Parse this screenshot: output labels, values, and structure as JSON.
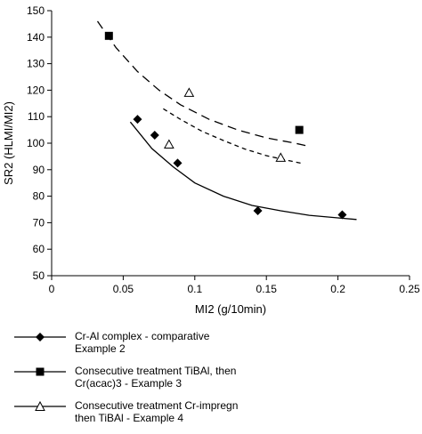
{
  "chart_data": {
    "type": "scatter",
    "title": "",
    "xlabel": "MI2 (g/10min)",
    "ylabel": "SR2 (HLMI/MI2)",
    "xlim": [
      0,
      0.25
    ],
    "ylim": [
      50,
      150
    ],
    "x_ticks": [
      "0",
      "0.05",
      "0.1",
      "0.15",
      "0.2",
      "0.25"
    ],
    "y_ticks": [
      "50",
      "60",
      "70",
      "80",
      "90",
      "100",
      "110",
      "120",
      "130",
      "140",
      "150"
    ],
    "grid": false,
    "legend_position": "bottom",
    "series": [
      {
        "name": "Cr-Al complex - comparative Example 2",
        "label_lines": [
          "Cr-Al complex - comparative",
          "Example 2"
        ],
        "marker": "diamond",
        "line_style": "solid",
        "color": "#000000",
        "points": [
          [
            0.06,
            109
          ],
          [
            0.072,
            103
          ],
          [
            0.088,
            92.5
          ],
          [
            0.144,
            74.5
          ],
          [
            0.203,
            73
          ]
        ],
        "trend": [
          [
            0.055,
            108
          ],
          [
            0.07,
            98
          ],
          [
            0.085,
            91
          ],
          [
            0.1,
            85
          ],
          [
            0.12,
            80
          ],
          [
            0.14,
            76.5
          ],
          [
            0.16,
            74.5
          ],
          [
            0.18,
            72.8
          ],
          [
            0.2,
            71.8
          ],
          [
            0.213,
            71.2
          ]
        ]
      },
      {
        "name": "Consecutive treatment TiBAl, then Cr(acac)3 - Example 3",
        "label_lines": [
          "Consecutive treatment TiBAl, then",
          "Cr(acac)3 - Example 3"
        ],
        "marker": "square",
        "line_style": "long-dash",
        "color": "#000000",
        "points": [
          [
            0.04,
            140.5
          ],
          [
            0.173,
            105
          ]
        ],
        "trend": [
          [
            0.032,
            146
          ],
          [
            0.045,
            136
          ],
          [
            0.06,
            127
          ],
          [
            0.075,
            120
          ],
          [
            0.09,
            114.5
          ],
          [
            0.11,
            109
          ],
          [
            0.13,
            105
          ],
          [
            0.15,
            102
          ],
          [
            0.17,
            100
          ],
          [
            0.18,
            98.8
          ]
        ]
      },
      {
        "name": "Consecutive treatment Cr-impregn then TiBAl - Example 4",
        "label_lines": [
          "Consecutive treatment Cr-impregn",
          "then TiBAl - Example 4"
        ],
        "marker": "open-triangle",
        "line_style": "short-dash",
        "color": "#000000",
        "points": [
          [
            0.096,
            119
          ],
          [
            0.082,
            99.5
          ],
          [
            0.16,
            94.5
          ]
        ],
        "trend": [
          [
            0.078,
            113
          ],
          [
            0.09,
            109
          ],
          [
            0.105,
            104.5
          ],
          [
            0.12,
            101
          ],
          [
            0.135,
            97.8
          ],
          [
            0.15,
            95.3
          ],
          [
            0.165,
            93.5
          ],
          [
            0.174,
            92.5
          ]
        ]
      }
    ]
  }
}
